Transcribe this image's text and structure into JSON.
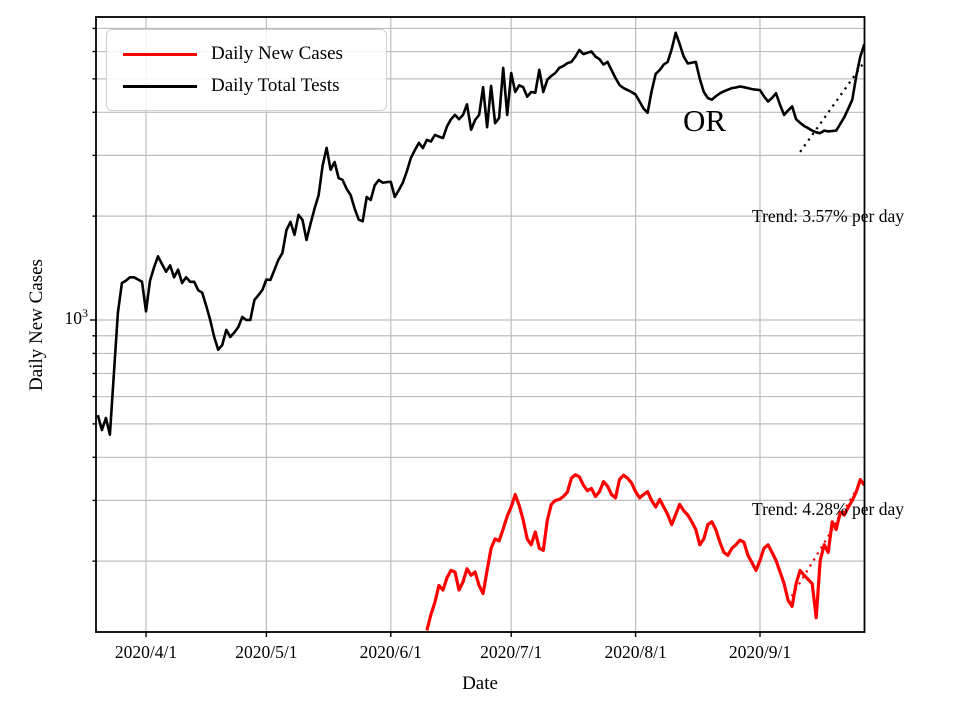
{
  "chart_data": {
    "type": "line",
    "title": "",
    "xlabel": "Date",
    "ylabel": "Daily New Cases",
    "y_scale": "log",
    "ylim": [
      124,
      7560
    ],
    "x_range": [
      "2020-03-20",
      "2020-09-27"
    ],
    "grid": true,
    "legend_position": "upper left",
    "x_ticks": [
      {
        "date": "2020-04-01",
        "label": "2020/4/1"
      },
      {
        "date": "2020-05-01",
        "label": "2020/5/1"
      },
      {
        "date": "2020-06-01",
        "label": "2020/6/1"
      },
      {
        "date": "2020-07-01",
        "label": "2020/7/1"
      },
      {
        "date": "2020-08-01",
        "label": "2020/8/1"
      },
      {
        "date": "2020-09-01",
        "label": "2020/9/1"
      }
    ],
    "y_axis_major_tick": {
      "base": "10",
      "exponent": "3",
      "value": 1000
    },
    "y_gridline_values": [
      200,
      300,
      400,
      500,
      600,
      700,
      800,
      900,
      1000,
      2000,
      3000,
      4000,
      5000,
      6000,
      7000
    ],
    "series": [
      {
        "name": "Daily New Cases",
        "color": "#ff0000",
        "start_date": "2020-06-10",
        "values": [
          126,
          140,
          152,
          170,
          165,
          179,
          188,
          186,
          165,
          174,
          190,
          182,
          186,
          170,
          161,
          188,
          218,
          232,
          229,
          248,
          270,
          287,
          312,
          290,
          263,
          232,
          223,
          243,
          218,
          215,
          263,
          292,
          300,
          302,
          308,
          317,
          348,
          356,
          351,
          332,
          320,
          325,
          308,
          318,
          340,
          330,
          312,
          305,
          345,
          355,
          348,
          337,
          318,
          305,
          312,
          318,
          300,
          287,
          302,
          287,
          273,
          255,
          273,
          292,
          280,
          272,
          260,
          247,
          223,
          232,
          255,
          260,
          247,
          227,
          212,
          208,
          218,
          223,
          230,
          227,
          208,
          198,
          188,
          201,
          218,
          223,
          212,
          201,
          186,
          172,
          154,
          148,
          172,
          188,
          182,
          177,
          172,
          137,
          201,
          223,
          212,
          260,
          247,
          277,
          272,
          287,
          300,
          318,
          345,
          332
        ]
      },
      {
        "name": "Daily Total Tests",
        "color": "#000000",
        "start_date": "2020-03-20",
        "values": [
          530,
          480,
          520,
          465,
          700,
          1050,
          1280,
          1300,
          1330,
          1330,
          1310,
          1290,
          1060,
          1300,
          1420,
          1530,
          1450,
          1380,
          1440,
          1330,
          1400,
          1280,
          1330,
          1290,
          1290,
          1220,
          1200,
          1100,
          1000,
          893,
          820,
          846,
          936,
          893,
          920,
          954,
          1020,
          1000,
          1000,
          1143,
          1180,
          1222,
          1310,
          1306,
          1396,
          1494,
          1564,
          1825,
          1924,
          1765,
          2017,
          1950,
          1706,
          1900,
          2100,
          2300,
          2800,
          3153,
          2725,
          2870,
          2580,
          2545,
          2400,
          2300,
          2100,
          1955,
          1933,
          2273,
          2227,
          2457,
          2545,
          2500,
          2510,
          2515,
          2273,
          2380,
          2500,
          2695,
          2950,
          3110,
          3260,
          3150,
          3330,
          3290,
          3440,
          3400,
          3370,
          3640,
          3820,
          3930,
          3820,
          3930,
          4220,
          3560,
          3800,
          3930,
          4730,
          3620,
          4770,
          3720,
          3850,
          5380,
          3930,
          5200,
          4580,
          4790,
          4730,
          4440,
          4580,
          4560,
          5310,
          4580,
          4970,
          5100,
          5200,
          5380,
          5450,
          5550,
          5600,
          5800,
          6060,
          5900,
          5950,
          6000,
          5800,
          5700,
          5500,
          5600,
          5300,
          5030,
          4800,
          4700,
          4640,
          4580,
          4500,
          4300,
          4100,
          3990,
          4600,
          5170,
          5300,
          5500,
          5600,
          6100,
          6800,
          6300,
          5800,
          5540,
          5570,
          5600,
          5000,
          4580,
          4400,
          4350,
          4450,
          4540,
          4600,
          4650,
          4700,
          4720,
          4750,
          4730,
          4700,
          4670,
          4650,
          4640,
          4450,
          4300,
          4400,
          4540,
          4200,
          3930,
          4050,
          4160,
          3820,
          3730,
          3650,
          3600,
          3540,
          3500,
          3480,
          3540,
          3520,
          3530,
          3540,
          3700,
          3870,
          4100,
          4350,
          5100,
          5800,
          6300
        ]
      }
    ],
    "trend_lines": [
      {
        "series": "Daily Total Tests",
        "label": "Trend: 3.57% per day",
        "rate_percent_per_day": 3.57,
        "color": "#000000",
        "style": "dotted",
        "start_date": "2020-09-11",
        "start_value": 3070,
        "end_date": "2020-09-27",
        "end_value": 5600
      },
      {
        "series": "Daily New Cases",
        "label": "Trend: 4.28% per day",
        "rate_percent_per_day": 4.28,
        "color": "#ff0000",
        "style": "dotted",
        "start_date": "2020-09-08",
        "start_value": 152,
        "end_date": "2020-09-27",
        "end_value": 351
      }
    ],
    "annotations": [
      {
        "text": "OR",
        "date": "2020-08-20",
        "value": 3675
      }
    ]
  }
}
